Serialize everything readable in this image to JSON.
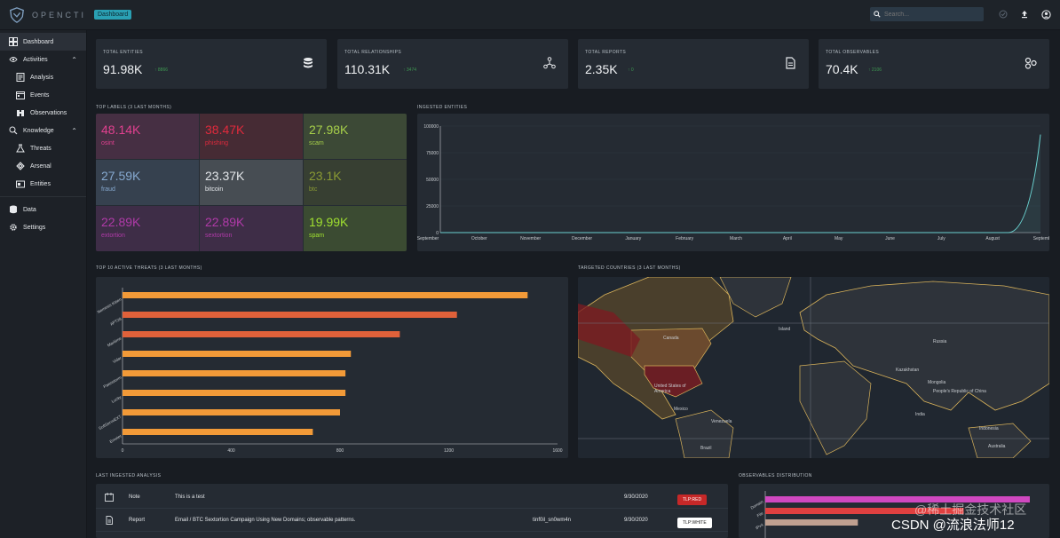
{
  "app": {
    "logo_text": "OPENCTI",
    "page_chip": "Dashboard"
  },
  "search": {
    "placeholder": "Search..."
  },
  "sidebar": {
    "items": [
      {
        "label": "Dashboard"
      },
      {
        "label": "Activities"
      },
      {
        "label": "Analysis"
      },
      {
        "label": "Events"
      },
      {
        "label": "Observations"
      },
      {
        "label": "Knowledge"
      },
      {
        "label": "Threats"
      },
      {
        "label": "Arsenal"
      },
      {
        "label": "Entities"
      },
      {
        "label": "Data"
      },
      {
        "label": "Settings"
      }
    ]
  },
  "stats": [
    {
      "title": "TOTAL ENTITIES",
      "value": "91.98K",
      "delta": "8866"
    },
    {
      "title": "TOTAL RELATIONSHIPS",
      "value": "110.31K",
      "delta": "3474"
    },
    {
      "title": "TOTAL REPORTS",
      "value": "2.35K",
      "delta": "0"
    },
    {
      "title": "TOTAL OBSERVABLES",
      "value": "70.4K",
      "delta": "2106"
    }
  ],
  "top_labels": {
    "title": "TOP LABELS (3 LAST MONTHS)",
    "cells": [
      {
        "value": "48.14K",
        "name": "osint"
      },
      {
        "value": "38.47K",
        "name": "phishing"
      },
      {
        "value": "27.98K",
        "name": "scam"
      },
      {
        "value": "27.59K",
        "name": "fraud"
      },
      {
        "value": "23.37K",
        "name": "bitcoin"
      },
      {
        "value": "23.1K",
        "name": "btc"
      },
      {
        "value": "22.89K",
        "name": "extortion"
      },
      {
        "value": "22.89K",
        "name": "sextortion"
      },
      {
        "value": "19.99K",
        "name": "spam"
      }
    ],
    "colors": [
      "#e0408f",
      "#e02a3c",
      "#a7d04a",
      "#86a9d0",
      "#e4e7ea",
      "#8a9a33",
      "#b03aa8",
      "#b03aa8",
      "#a0e030"
    ]
  },
  "ingested": {
    "title": "INGESTED ENTITIES"
  },
  "threats": {
    "title": "TOP 10 ACTIVE THREATS (3 LAST MONTHS)"
  },
  "countries": {
    "title": "TARGETED COUNTRIES (3 LAST MONTHS)",
    "map_labels": [
      "Canada",
      "United States of America",
      "Mexico",
      "Brazil",
      "Russia",
      "Mongolia",
      "People's Republic of China",
      "Kazakhstan",
      "Island",
      "India",
      "Australia",
      "Indonesia",
      "Venezuela"
    ]
  },
  "analysis": {
    "title": "LAST INGESTED ANALYSIS",
    "rows": [
      {
        "type": "Note",
        "name": "This is a test",
        "author": "",
        "date": "9/30/2020",
        "tlp": "TLP:RED"
      },
      {
        "type": "Report",
        "name": "Email / BTC Sextortion Campaign Using New Domains; observable patterns.",
        "author": "tinf0il_sn0wm4n",
        "date": "9/30/2020",
        "tlp": "TLP:WHITE"
      }
    ]
  },
  "observables": {
    "title": "OBSERVABLES DISTRIBUTION"
  },
  "watermark": "CSDN @流浪法师12",
  "watermark2": "@稀土掘金技术社区",
  "chart_data": [
    {
      "type": "line",
      "title": "INGESTED ENTITIES",
      "x": [
        "September",
        "October",
        "November",
        "December",
        "January",
        "February",
        "March",
        "April",
        "May",
        "June",
        "July",
        "August",
        "September"
      ],
      "series": [
        {
          "name": "Entities",
          "values": [
            0,
            0,
            0,
            0,
            0,
            0,
            0,
            0,
            0,
            0,
            0,
            0,
            92000
          ]
        }
      ],
      "yticks": [
        "0",
        "25000",
        "50000",
        "75000",
        "100000"
      ],
      "ylim": [
        0,
        100000
      ]
    },
    {
      "type": "bar",
      "orientation": "horizontal",
      "title": "TOP 10 ACTIVE THREATS (3 LAST MONTHS)",
      "categories": [
        "Nemesis Kitten",
        "APT28",
        "Maritime",
        "Vidar",
        "Pawnstorm",
        "Lucky",
        "SoftServeEXT",
        "Emotet"
      ],
      "values": [
        1490,
        1230,
        1020,
        840,
        820,
        820,
        800,
        700
      ],
      "colors": [
        "#f29a38",
        "#e0613a",
        "#e0613a",
        "#f29a38",
        "#f29a38",
        "#f29a38",
        "#f29a38",
        "#f29a38"
      ],
      "xticks": [
        "0",
        "400",
        "800",
        "1200",
        "1600"
      ],
      "xlim": [
        0,
        1600
      ]
    },
    {
      "type": "bar",
      "orientation": "horizontal",
      "title": "OBSERVABLES DISTRIBUTION",
      "categories": [
        "Domain",
        "File",
        "IPv4"
      ],
      "values": [
        100,
        75,
        35
      ],
      "colors": [
        "#d048c0",
        "#e04040",
        "#c0a090"
      ]
    }
  ]
}
